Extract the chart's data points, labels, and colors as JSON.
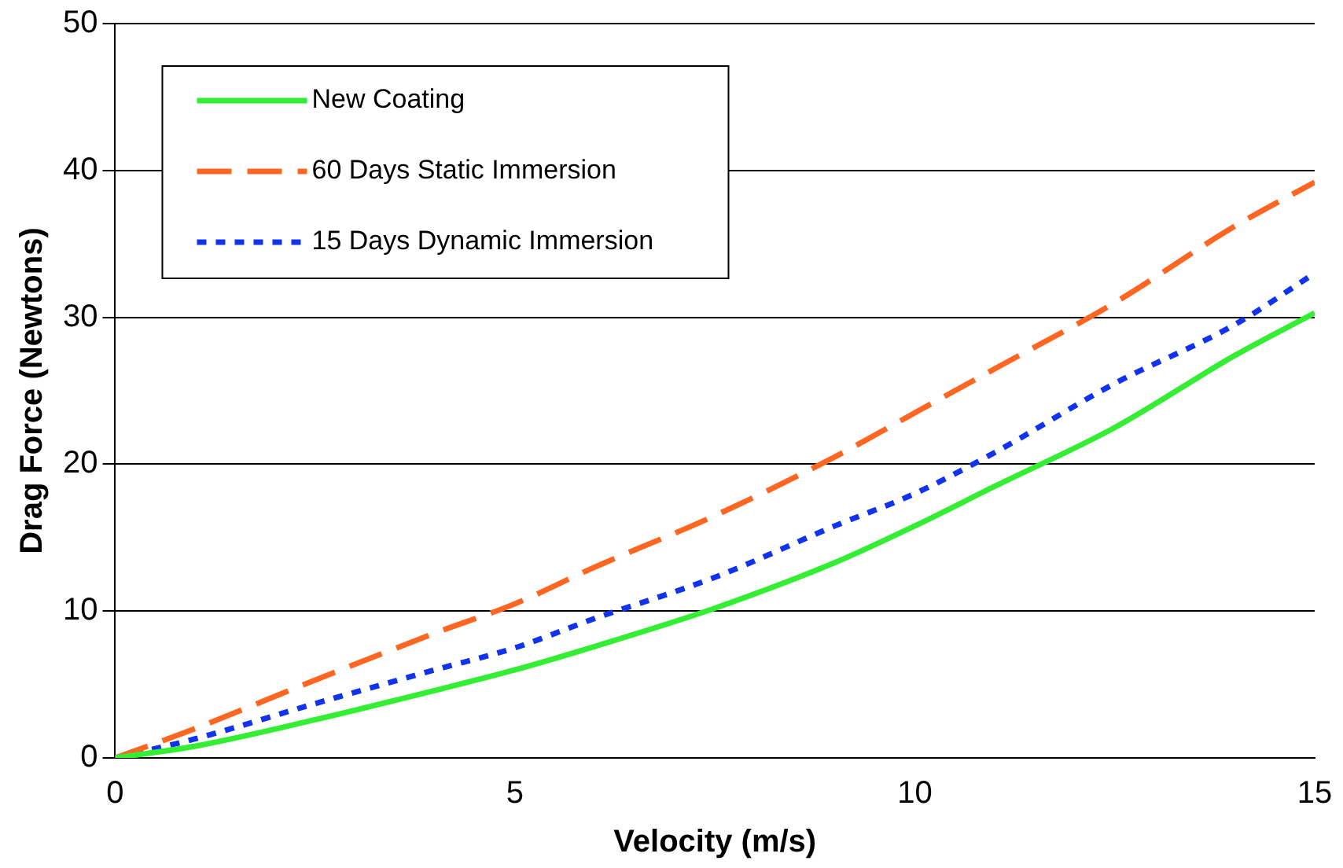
{
  "chart_data": {
    "type": "line",
    "xlabel": "Velocity (m/s)",
    "ylabel": "Drag Force (Newtons)",
    "x": [
      0,
      1,
      2.5,
      4,
      5,
      6,
      7.5,
      9,
      10,
      11,
      12.5,
      14,
      15
    ],
    "xlim": [
      0,
      15
    ],
    "xticks": [
      0,
      5,
      10,
      15
    ],
    "ylim": [
      0,
      50
    ],
    "yticks": [
      0,
      10,
      20,
      30,
      40,
      50
    ],
    "grid": "y",
    "legend": "top left",
    "marker": "none",
    "series": [
      {
        "name": "New Coating",
        "color": "#33ee33",
        "line_style": "solid",
        "values": [
          0,
          0.8,
          2.6,
          4.6,
          6.0,
          7.6,
          10.2,
          13.3,
          15.8,
          18.5,
          22.5,
          27.4,
          30.3
        ]
      },
      {
        "name": "60 Days Static Immersion",
        "color": "#ff6622",
        "line_style": "dashed",
        "values": [
          0,
          2.0,
          5.3,
          8.5,
          10.5,
          13.0,
          16.5,
          20.5,
          23.5,
          26.5,
          31.0,
          36.2,
          39.2
        ]
      },
      {
        "name": "15 Days Dynamic Immersion",
        "color": "#1133ee",
        "line_style": "dotted",
        "values": [
          0,
          1.3,
          3.7,
          6.0,
          7.5,
          9.5,
          12.3,
          15.8,
          18.0,
          20.8,
          25.5,
          29.5,
          33.0
        ]
      }
    ]
  }
}
